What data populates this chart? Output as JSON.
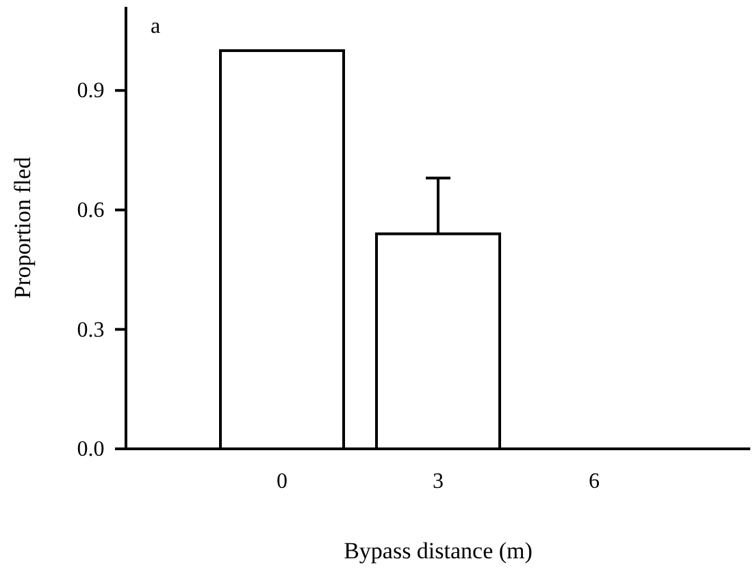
{
  "chart_data": {
    "type": "bar",
    "categories": [
      "0",
      "3",
      "6"
    ],
    "values": [
      1.0,
      0.54,
      0
    ],
    "errors": [
      null,
      [
        0.54,
        0.68
      ],
      null
    ],
    "color": "#ffffff",
    "ylim": [
      0,
      1.11
    ],
    "yticks": [
      {
        "value": 0,
        "label": "0.0"
      },
      0.3,
      0.6,
      0.9
    ],
    "xlabel": "Bypass distance (m)",
    "ylabel": "Proportion  fled",
    "annotations": [
      "a"
    ],
    "grid": false
  }
}
